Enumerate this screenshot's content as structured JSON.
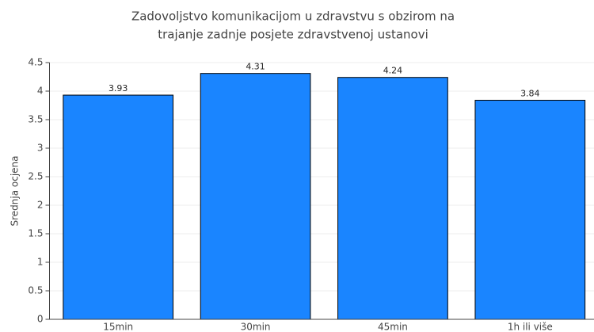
{
  "chart_data": {
    "type": "bar",
    "title": [
      "Zadovoljstvo komunikacijom u zdravstvu s obzirom na",
      "trajanje zadnje posjete zdravstvenoj ustanovi"
    ],
    "y_label": "Srednja ocjena",
    "categories": [
      "15min",
      "30min",
      "45min",
      "1h ili više"
    ],
    "values": [
      3.93,
      4.31,
      4.24,
      3.84
    ],
    "color": "#1a85ff",
    "ylim": [
      0,
      4.5
    ],
    "yticks": [
      0,
      0.5,
      1,
      1.5,
      2,
      2.5,
      3,
      3.5,
      4,
      4.5
    ],
    "grid": true
  }
}
